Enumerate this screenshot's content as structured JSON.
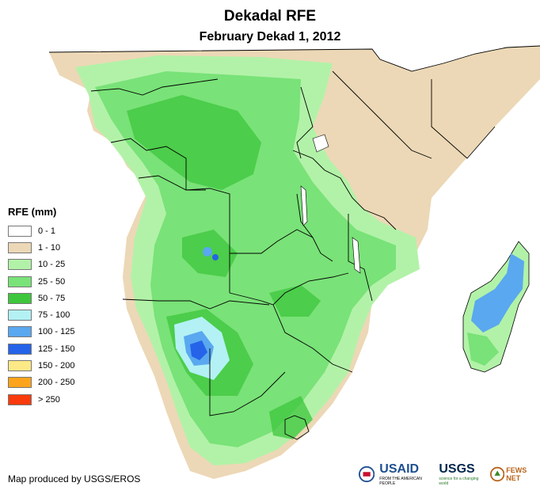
{
  "title": "Dekadal RFE",
  "subtitle": "February Dekad 1, 2012",
  "legend": {
    "title": "RFE (mm)",
    "items": [
      {
        "label": "0 - 1",
        "color": "#ffffff"
      },
      {
        "label": "1 - 10",
        "color": "#ecd8b6"
      },
      {
        "label": "10 - 25",
        "color": "#b2f2a8"
      },
      {
        "label": "25 - 50",
        "color": "#79e278"
      },
      {
        "label": "50 - 75",
        "color": "#3ec63c"
      },
      {
        "label": "75 - 100",
        "color": "#b3f1f4"
      },
      {
        "label": "100 - 125",
        "color": "#59a8f0"
      },
      {
        "label": "125 - 150",
        "color": "#2563e8"
      },
      {
        "label": "150 - 200",
        "color": "#fee987"
      },
      {
        "label": "200 - 250",
        "color": "#fca41c"
      },
      {
        "label": "> 250",
        "color": "#f93a0c"
      }
    ]
  },
  "credit": "Map produced by USGS/EROS",
  "logos": {
    "usaid": "USAID",
    "usaid_tagline": "FROM THE AMERICAN PEOPLE",
    "usgs": "USGS",
    "usgs_tagline": "science for a changing world",
    "fewsnet": "FEWS NET"
  }
}
